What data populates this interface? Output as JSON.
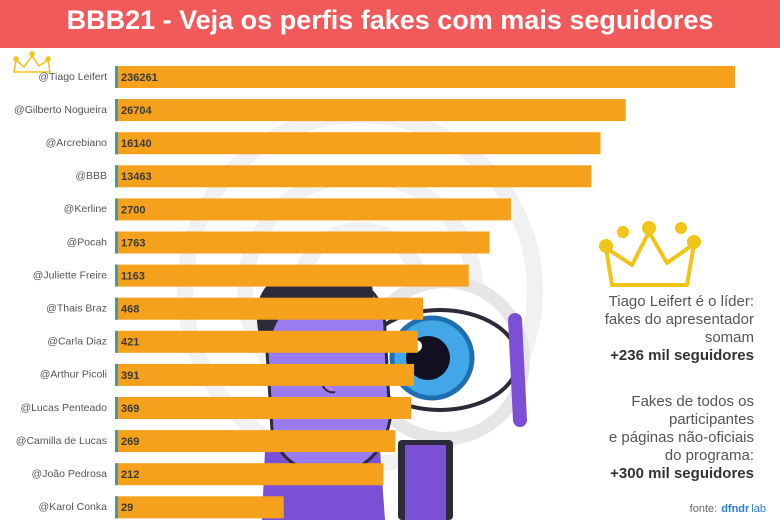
{
  "chart_data": {
    "type": "bar",
    "title": "BBB21 - Veja os perfis fakes com mais seguidores",
    "categories": [
      "@Tiago Leifert",
      "@Gilberto Nogueira",
      "@Arcrebiano",
      "@BBB",
      "@Kerline",
      "@Pocah",
      "@Juliette Freire",
      "@Thais Braz",
      "@Carla Diaz",
      "@Arthur Picoli",
      "@Lucas Penteado",
      "@Camilla de Lucas",
      "@João Pedrosa",
      "@Karol Conka"
    ],
    "values": [
      236261,
      26704,
      16140,
      13463,
      2700,
      1763,
      1163,
      468,
      421,
      391,
      369,
      269,
      212,
      29
    ],
    "color": "#f5a11c",
    "log_scale": true,
    "annotations": [
      {
        "lines": [
          "Tiago Leifert é o líder:",
          "fakes do apresentador",
          "somam"
        ],
        "highlight": "+236 mil seguidores"
      },
      {
        "lines": [
          "Fakes de todos os",
          "participantes",
          "e páginas não-oficiais",
          "do programa:"
        ],
        "highlight": "+300 mil seguidores"
      }
    ],
    "source": {
      "prefix": "fonte:",
      "name": "dfndr",
      "suffix": "lab"
    }
  }
}
